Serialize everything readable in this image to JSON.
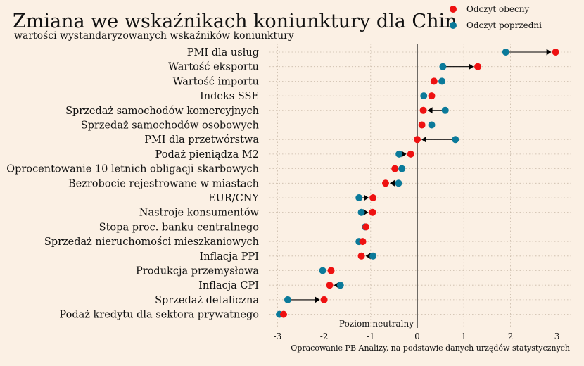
{
  "chart_data": {
    "type": "dot",
    "title": "Zmiana we wskaźnikach koniunktury dla Chin",
    "subtitle": "wartości wystandaryzowanych wskaźników koniunktury",
    "source": "Opracowanie PB Analizy, na podstawie danych urzędów statystycznych",
    "neutral_label": "Poziom neutralny",
    "xlim": [
      -3.3,
      3.3
    ],
    "xticks": [
      -3,
      -2,
      -1,
      0,
      1,
      2,
      3
    ],
    "xtick_labels": [
      "-3",
      "-2",
      "-1",
      "0",
      "1",
      "2",
      "3"
    ],
    "grid": true,
    "legend_position": "top-right",
    "legend": [
      {
        "name": "Odczyt obecny",
        "color": "#ee1111"
      },
      {
        "name": "Odczyt poprzedni",
        "color": "#0b7a9a"
      }
    ],
    "categories": [
      "PMI dla usług",
      "Wartość eksportu",
      "Wartość importu",
      "Indeks SSE",
      "Sprzedaż samochodów komercyjnych",
      "Sprzedaż samochodów osobowych",
      "PMI dla przetwórstwa",
      "Podaż pieniądza M2",
      "Oprocentowanie 10 letnich obligacji skarbowych",
      "Bezrobocie rejestrowane w miastach",
      "EUR/CNY",
      "Nastroje konsumentów",
      "Stopa proc. banku centralnego",
      "Sprzedaż nieruchomości mieszkaniowych",
      "Inflacja PPI",
      "Produkcja przemysłowa",
      "Inflacja CPI",
      "Sprzedaż detaliczna",
      "Podaż kredytu dla sektora prywatnego"
    ],
    "series": [
      {
        "name": "Odczyt obecny",
        "color": "#ee1111",
        "values": [
          2.97,
          1.3,
          0.36,
          0.31,
          0.13,
          0.1,
          0.0,
          -0.14,
          -0.48,
          -0.68,
          -0.95,
          -0.96,
          -1.1,
          -1.17,
          -1.2,
          -1.85,
          -1.88,
          -2.0,
          -2.87
        ]
      },
      {
        "name": "Odczyt poprzedni",
        "color": "#0b7a9a",
        "values": [
          1.9,
          0.55,
          0.53,
          0.14,
          0.6,
          0.31,
          0.82,
          -0.39,
          -0.33,
          -0.4,
          -1.25,
          -1.2,
          -1.12,
          -1.25,
          -0.95,
          -2.03,
          -1.65,
          -2.78,
          -2.96
        ]
      }
    ]
  }
}
